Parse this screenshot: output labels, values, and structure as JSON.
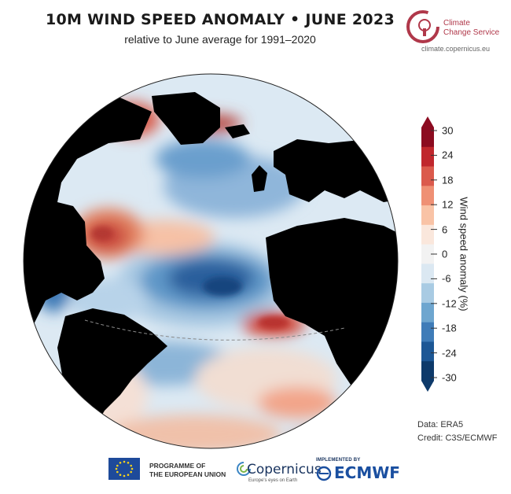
{
  "header": {
    "title": "10M WIND SPEED ANOMALY • JUNE 2023",
    "subtitle": "relative to June average for 1991–2020"
  },
  "branding": {
    "service_line1": "Climate",
    "service_line2": "Change Service",
    "url": "climate.copernicus.eu",
    "accent_color": "#b0384a"
  },
  "colorbar": {
    "title": "Wind speed anomaly (%)",
    "ticks": [
      "30",
      "24",
      "18",
      "12",
      "6",
      "0",
      "-6",
      "-12",
      "-18",
      "-24",
      "-30"
    ],
    "colors": [
      "#8c0b20",
      "#c0272d",
      "#db5a4c",
      "#ef9074",
      "#f9c3a6",
      "#fae7dc",
      "#f2f2f2",
      "#dbe8f2",
      "#a9cbe3",
      "#6ea6cf",
      "#3f7cb8",
      "#1d5795",
      "#0e3a6a"
    ],
    "min": -30,
    "max": 30
  },
  "source": {
    "data": "Data: ERA5",
    "credit": "Credit: C3S/ECMWF"
  },
  "footer": {
    "eu_line1": "PROGRAMME OF",
    "eu_line2": "THE EUROPEAN UNION",
    "copernicus": "Copernicus",
    "copernicus_sub": "Europe's eyes on Earth",
    "implemented_by": "IMPLEMENTED BY",
    "ecmwf": "ECMWF"
  },
  "map": {
    "projection": "orthographic globe centred on the Atlantic Ocean",
    "land_color": "#000000"
  }
}
